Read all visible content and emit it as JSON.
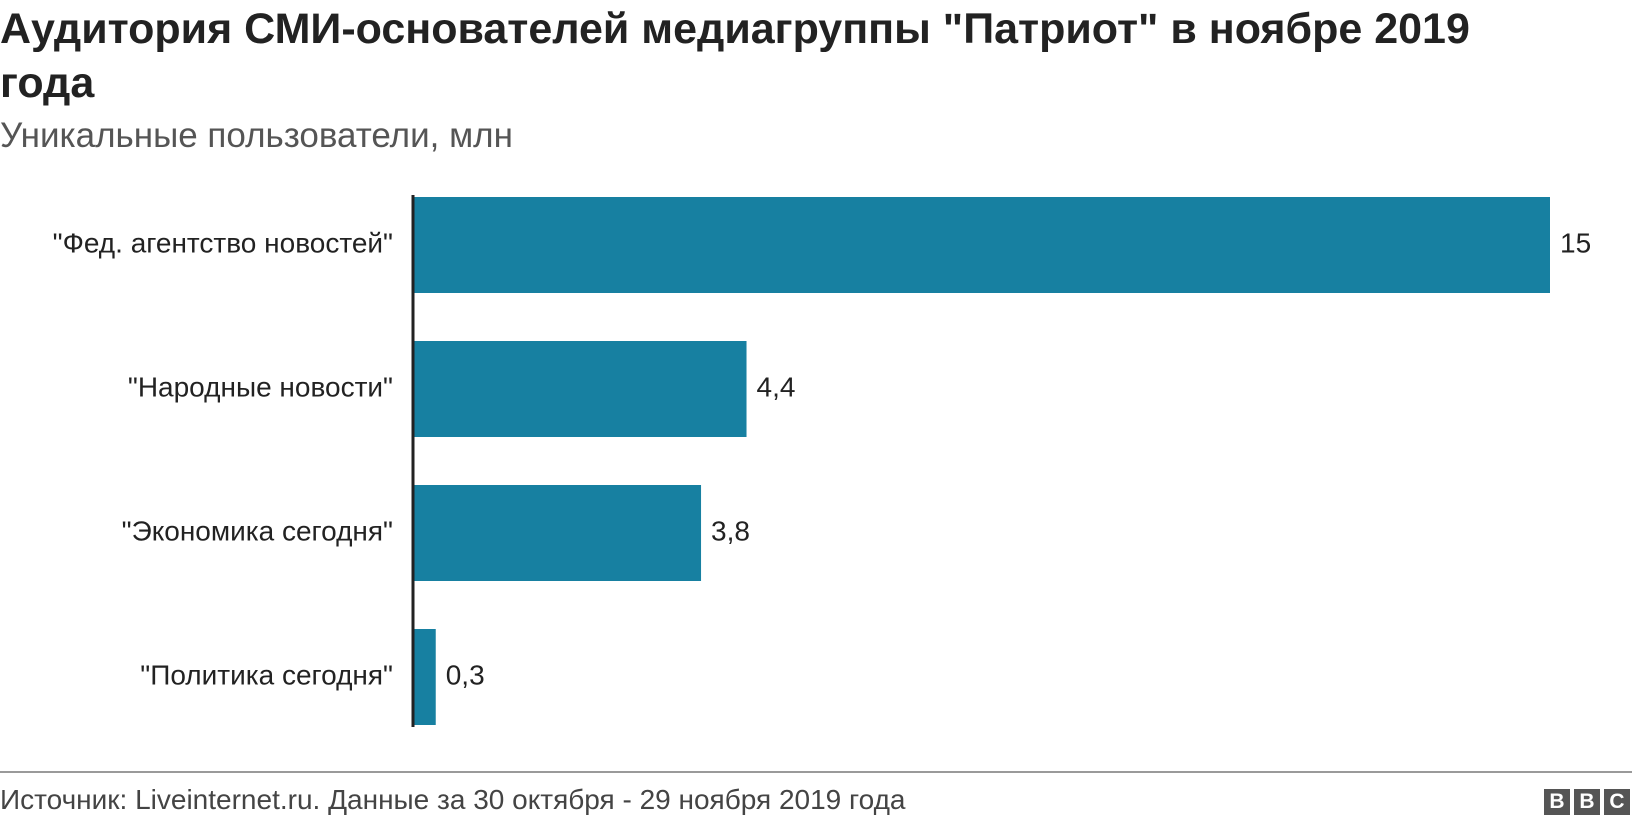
{
  "header": {
    "title": "Аудитория СМИ-основателей медиагруппы \"Патриот\" в ноябре 2019 года",
    "subtitle": "Уникальные пользователи, млн"
  },
  "chart_data": {
    "type": "bar",
    "orientation": "horizontal",
    "title": "Аудитория СМИ-основателей медиагруппы \"Патриот\" в ноябре 2019 года",
    "subtitle": "Уникальные пользователи, млн",
    "categories": [
      "\"Фед. агентство новостей\"",
      "\"Народные новости\"",
      "\"Экономика сегодня\"",
      "\"Политика сегодня\""
    ],
    "values": [
      15,
      4.4,
      3.8,
      0.3
    ],
    "value_labels": [
      "15",
      "4,4",
      "3,8",
      "0,3"
    ],
    "xlim": [
      0,
      15
    ],
    "bar_color": "#1780a1",
    "grid": false,
    "legend": "none"
  },
  "footer": {
    "source": "Источник: Liveinternet.ru. Данные за 30 октября - 29 ноября 2019 года",
    "logo_letters": [
      "B",
      "B",
      "C"
    ]
  }
}
